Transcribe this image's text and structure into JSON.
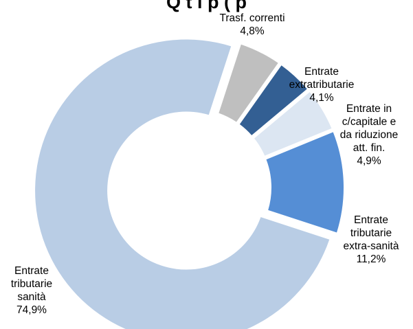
{
  "chart_data": {
    "type": "pie",
    "variant": "donut",
    "title": "",
    "title_fragment": "Q        t   l            p                                (      p",
    "slices": [
      {
        "name": "Trasf. correnti",
        "label_lines": [
          "Trasf. correnti"
        ],
        "value_text": "4,8%",
        "value": 4.8,
        "color": "#BFBFBF"
      },
      {
        "name": "Entrate extratributarie",
        "label_lines": [
          "Entrate",
          "extratributarie"
        ],
        "value_text": "4,1%",
        "value": 4.1,
        "color": "#335F93"
      },
      {
        "name": "Entrate in c/capitale e da riduzione att. fin.",
        "label_lines": [
          "Entrate in",
          "c/capitale e",
          "da riduzione",
          "att. fin."
        ],
        "value_text": "4,9%",
        "value": 4.9,
        "color": "#DCE6F2"
      },
      {
        "name": "Entrate tributarie extra-sanità",
        "label_lines": [
          "Entrate",
          "tributarie",
          "extra-sanità"
        ],
        "value_text": "11,2%",
        "value": 11.2,
        "color": "#558ED5"
      },
      {
        "name": "Entrate tributarie sanità",
        "label_lines": [
          "Entrate",
          "tributarie",
          "sanità"
        ],
        "value_text": "74,9%",
        "value": 74.9,
        "color": "#B9CDE5",
        "exploded": true
      }
    ],
    "start_angle_deg": 18,
    "legend": "none"
  }
}
